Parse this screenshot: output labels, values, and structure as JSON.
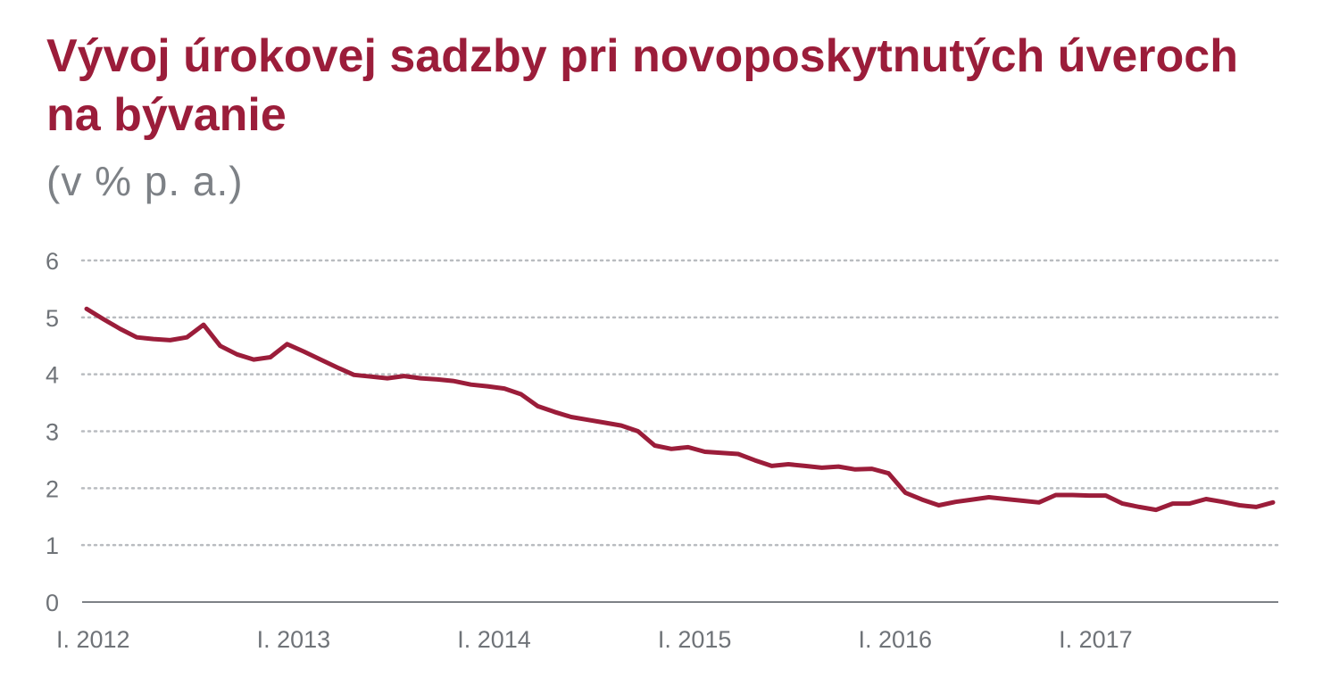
{
  "chart_data": {
    "type": "line",
    "title": "Vývoj úrokovej sadzby pri novoposkytnutých úveroch na bývanie",
    "subtitle": "(v % p. a.)",
    "xlabel": "",
    "ylabel": "",
    "ylim": [
      0,
      6
    ],
    "yticks": [
      "0",
      "1",
      "2",
      "3",
      "4",
      "5",
      "6"
    ],
    "xticks": [
      "I. 2012",
      "I. 2013",
      "I. 2014",
      "I. 2015",
      "I. 2016",
      "I. 2017"
    ],
    "grid": true,
    "line_color": "#9b1d3a",
    "series": [
      {
        "x": [
          "2012-01",
          "2012-02",
          "2012-03",
          "2012-04",
          "2012-05",
          "2012-06",
          "2012-07",
          "2012-08",
          "2012-09",
          "2012-10",
          "2012-11",
          "2012-12",
          "2013-01",
          "2013-02",
          "2013-03",
          "2013-04",
          "2013-05",
          "2013-06",
          "2013-07",
          "2013-08",
          "2013-09",
          "2013-10",
          "2013-11",
          "2013-12",
          "2014-01",
          "2014-02",
          "2014-03",
          "2014-04",
          "2014-05",
          "2014-06",
          "2014-07",
          "2014-08",
          "2014-09",
          "2014-10",
          "2014-11",
          "2014-12",
          "2015-01",
          "2015-02",
          "2015-03",
          "2015-04",
          "2015-05",
          "2015-06",
          "2015-07",
          "2015-08",
          "2015-09",
          "2015-10",
          "2015-11",
          "2015-12",
          "2016-01",
          "2016-02",
          "2016-03",
          "2016-04",
          "2016-05",
          "2016-06",
          "2016-07",
          "2016-08",
          "2016-09",
          "2016-10",
          "2016-11",
          "2016-12",
          "2017-01",
          "2017-02",
          "2017-03",
          "2017-04",
          "2017-05",
          "2017-06",
          "2017-07",
          "2017-08",
          "2017-09",
          "2017-10",
          "2017-11",
          "2017-12"
        ],
        "values": [
          5.15,
          4.97,
          4.8,
          4.65,
          4.62,
          4.6,
          4.65,
          4.87,
          4.5,
          4.35,
          4.26,
          4.3,
          4.53,
          4.4,
          4.26,
          4.12,
          3.99,
          3.96,
          3.93,
          3.97,
          3.93,
          3.91,
          3.88,
          3.82,
          3.79,
          3.75,
          3.65,
          3.44,
          3.34,
          3.25,
          3.2,
          3.15,
          3.1,
          3.0,
          2.75,
          2.69,
          2.72,
          2.64,
          2.62,
          2.6,
          2.49,
          2.39,
          2.42,
          2.39,
          2.36,
          2.38,
          2.33,
          2.34,
          2.26,
          1.92,
          1.8,
          1.7,
          1.76,
          1.8,
          1.84,
          1.81,
          1.78,
          1.75,
          1.88,
          1.88,
          1.87,
          1.87,
          1.73,
          1.67,
          1.62,
          1.73,
          1.73,
          1.81,
          1.76,
          1.7,
          1.67,
          1.75
        ]
      }
    ]
  }
}
